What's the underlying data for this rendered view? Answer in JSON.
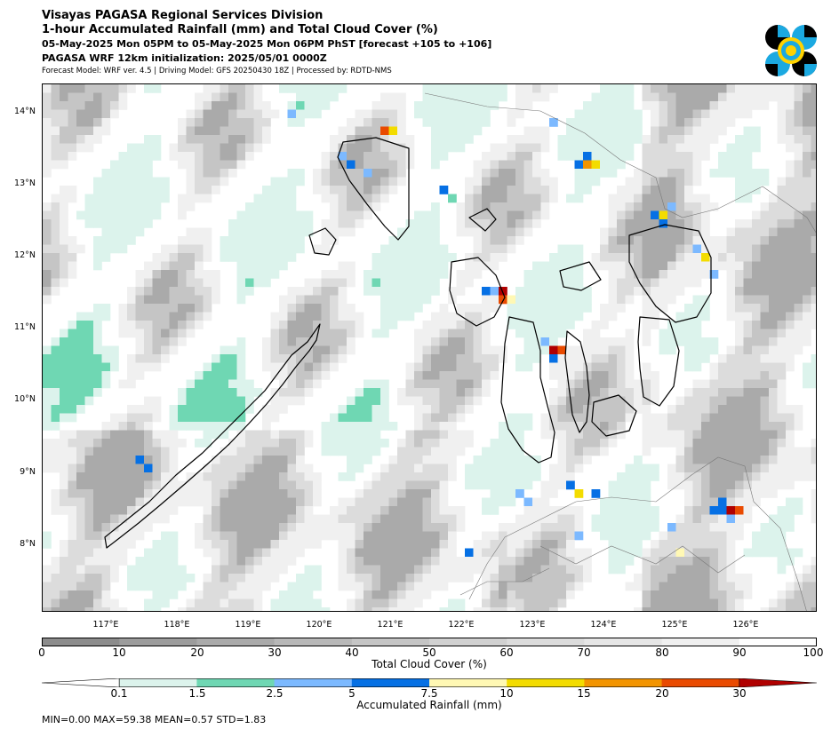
{
  "header": {
    "line1": "Visayas PAGASA Regional Services Division",
    "line2": "1-hour Accumulated Rainfall (mm) and Total Cloud Cover (%)",
    "line3": "05-May-2025 Mon 05PM to 05-May-2025 Mon 06PM PhST [forecast +105 to +106]",
    "line4": "PAGASA WRF 12km initialization: 2025/05/01 0000Z",
    "line5": "Forecast Model: WRF ver. 4.5 | Driving Model: GFS 20250430 18Z | Processed by: RDTD-NMS"
  },
  "logo": {
    "icon": "pagasa-logo",
    "colors": [
      "#000000",
      "#1ba9e1",
      "#ffd200"
    ]
  },
  "map": {
    "lat_labels": [
      "14°N",
      "13°N",
      "12°N",
      "11°N",
      "10°N",
      "9°N",
      "8°N"
    ],
    "lon_labels": [
      "117°E",
      "118°E",
      "119°E",
      "120°E",
      "121°E",
      "122°E",
      "123°E",
      "124°E",
      "125°E",
      "126°E"
    ],
    "extent": {
      "lon": [
        116.2,
        127.1
      ],
      "lat": [
        7.0,
        14.3
      ]
    }
  },
  "cloud_cover": {
    "label": "Total Cloud Cover (%)",
    "ticks": [
      "0",
      "10",
      "20",
      "30",
      "40",
      "50",
      "60",
      "70",
      "80",
      "90",
      "100"
    ],
    "colors": [
      "#8c8c8c",
      "#9c9c9c",
      "#aaaaaa",
      "#b8b8b8",
      "#c5c5c5",
      "#d1d1d1",
      "#dcdcdc",
      "#e6e6e6",
      "#f0f0f0",
      "#ffffff"
    ]
  },
  "rainfall": {
    "label": "Accumulated Rainfall (mm)",
    "ticks": [
      "0.1",
      "1.5",
      "2.5",
      "5",
      "7.5",
      "10",
      "15",
      "20",
      "30"
    ],
    "colors": [
      "#dcf3ec",
      "#6fd7b3",
      "#7cb9ff",
      "#0670e4",
      "#fff8b4",
      "#f3dc00",
      "#f29400",
      "#e94a00",
      "#b00000"
    ]
  },
  "stats": "MIN=0.00   MAX=59.38   MEAN=0.57   STD=1.83"
}
